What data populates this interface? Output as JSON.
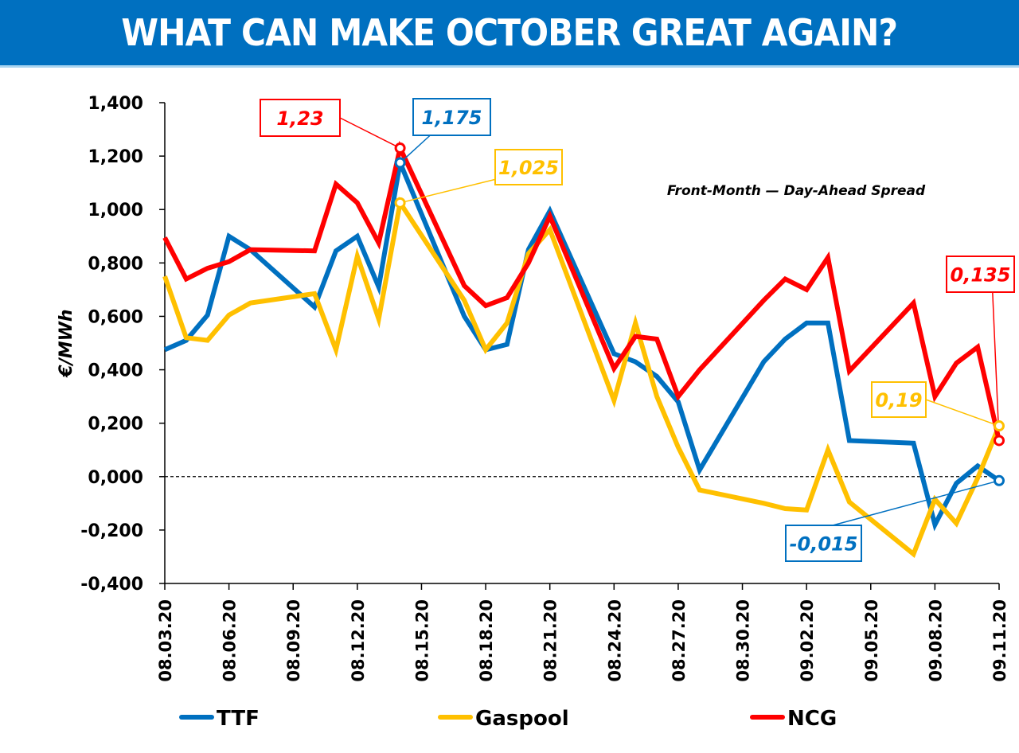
{
  "banner": {
    "title": "WHAT CAN MAKE OCTOBER GREAT AGAIN?",
    "color": "#0070c0"
  },
  "chart_data": {
    "type": "line",
    "title": "WHAT CAN MAKE OCTOBER GREAT AGAIN?",
    "subtitle": "Front-Month — Day-Ahead Spread",
    "xlabel": "",
    "ylabel": "€/MWh",
    "ylim": [
      -0.4,
      1.4
    ],
    "yticks": [
      -0.4,
      -0.2,
      0.0,
      0.2,
      0.4,
      0.6,
      0.8,
      1.0,
      1.2,
      1.4
    ],
    "ytick_labels": [
      "-0,400",
      "-0,200",
      "0,000",
      "0,200",
      "0,400",
      "0,600",
      "0,800",
      "1,000",
      "1,200",
      "1,400"
    ],
    "xlim_days": [
      0,
      39
    ],
    "xtick_days": [
      0,
      3,
      6,
      9,
      12,
      15,
      18,
      21,
      24,
      27,
      30,
      33,
      36,
      39
    ],
    "xtick_labels": [
      "08.03.20",
      "08.06.20",
      "08.09.20",
      "08.12.20",
      "08.15.20",
      "08.18.20",
      "08.21.20",
      "08.24.20",
      "08.27.20",
      "08.30.20",
      "09.02.20",
      "09.05.20",
      "09.08.20",
      "09.11.20"
    ],
    "x_days": [
      0,
      1,
      2,
      3,
      4,
      7,
      8,
      9,
      10,
      11,
      14,
      15,
      16,
      17,
      18,
      21,
      22,
      23,
      24,
      25,
      28,
      29,
      30,
      31,
      32,
      35,
      36,
      37,
      38,
      39
    ],
    "x_dates": [
      "08.03.20",
      "08.04.20",
      "08.05.20",
      "08.06.20",
      "08.07.20",
      "08.10.20",
      "08.11.20",
      "08.12.20",
      "08.13.20",
      "08.14.20",
      "08.17.20",
      "08.18.20",
      "08.19.20",
      "08.20.20",
      "08.21.20",
      "08.24.20",
      "08.25.20",
      "08.26.20",
      "08.27.20",
      "08.28.20",
      "08.31.20",
      "09.01.20",
      "09.02.20",
      "09.03.20",
      "09.04.20",
      "09.07.20",
      "09.08.20",
      "09.09.20",
      "09.10.20",
      "09.11.20"
    ],
    "zero_line": {
      "value": 0,
      "style": "dashed"
    },
    "grid": false,
    "legend_position": "bottom",
    "series": [
      {
        "name": "TTF",
        "color": "#0070c0",
        "values": [
          0.475,
          0.51,
          0.605,
          0.9,
          0.85,
          0.635,
          0.845,
          0.9,
          0.71,
          1.175,
          0.6,
          0.475,
          0.495,
          0.85,
          0.995,
          0.46,
          0.43,
          0.375,
          0.28,
          0.025,
          0.43,
          0.515,
          0.575,
          0.575,
          0.135,
          0.125,
          -0.18,
          -0.025,
          0.04,
          -0.015
        ]
      },
      {
        "name": "Gaspool",
        "color": "#ffc000",
        "values": [
          0.75,
          0.52,
          0.51,
          0.605,
          0.65,
          0.685,
          0.475,
          0.825,
          0.59,
          1.025,
          0.66,
          0.475,
          0.575,
          0.835,
          0.925,
          0.285,
          0.575,
          0.3,
          0.11,
          -0.05,
          -0.1,
          -0.12,
          -0.125,
          0.1,
          -0.095,
          -0.29,
          -0.085,
          -0.175,
          -0.005,
          0.19
        ]
      },
      {
        "name": "NCG",
        "color": "#ff0000",
        "values": [
          0.895,
          0.74,
          0.78,
          0.805,
          0.85,
          0.845,
          1.095,
          1.025,
          0.875,
          1.23,
          0.715,
          0.64,
          0.67,
          0.8,
          0.975,
          0.405,
          0.525,
          0.515,
          0.3,
          0.4,
          0.66,
          0.74,
          0.7,
          0.82,
          0.395,
          0.65,
          0.3,
          0.425,
          0.485,
          0.135
        ]
      }
    ],
    "annotations": [
      {
        "series": "NCG",
        "point_index": 9,
        "label": "1,23",
        "color": "#ff0000",
        "placement": "upper-left"
      },
      {
        "series": "TTF",
        "point_index": 9,
        "label": "1,175",
        "color": "#0070c0",
        "placement": "upper-right"
      },
      {
        "series": "Gaspool",
        "point_index": 9,
        "label": "1,025",
        "color": "#ffc000",
        "placement": "right"
      },
      {
        "series": "NCG",
        "point_index": 29,
        "label": "0,135",
        "color": "#ff0000",
        "placement": "above"
      },
      {
        "series": "Gaspool",
        "point_index": 29,
        "label": "0,19",
        "color": "#ffc000",
        "placement": "left"
      },
      {
        "series": "TTF",
        "point_index": 29,
        "label": "-0,015",
        "color": "#0070c0",
        "placement": "lower-left"
      }
    ]
  },
  "legend": [
    {
      "label": "TTF",
      "color": "#0070c0"
    },
    {
      "label": "Gaspool",
      "color": "#ffc000"
    },
    {
      "label": "NCG",
      "color": "#ff0000"
    }
  ]
}
